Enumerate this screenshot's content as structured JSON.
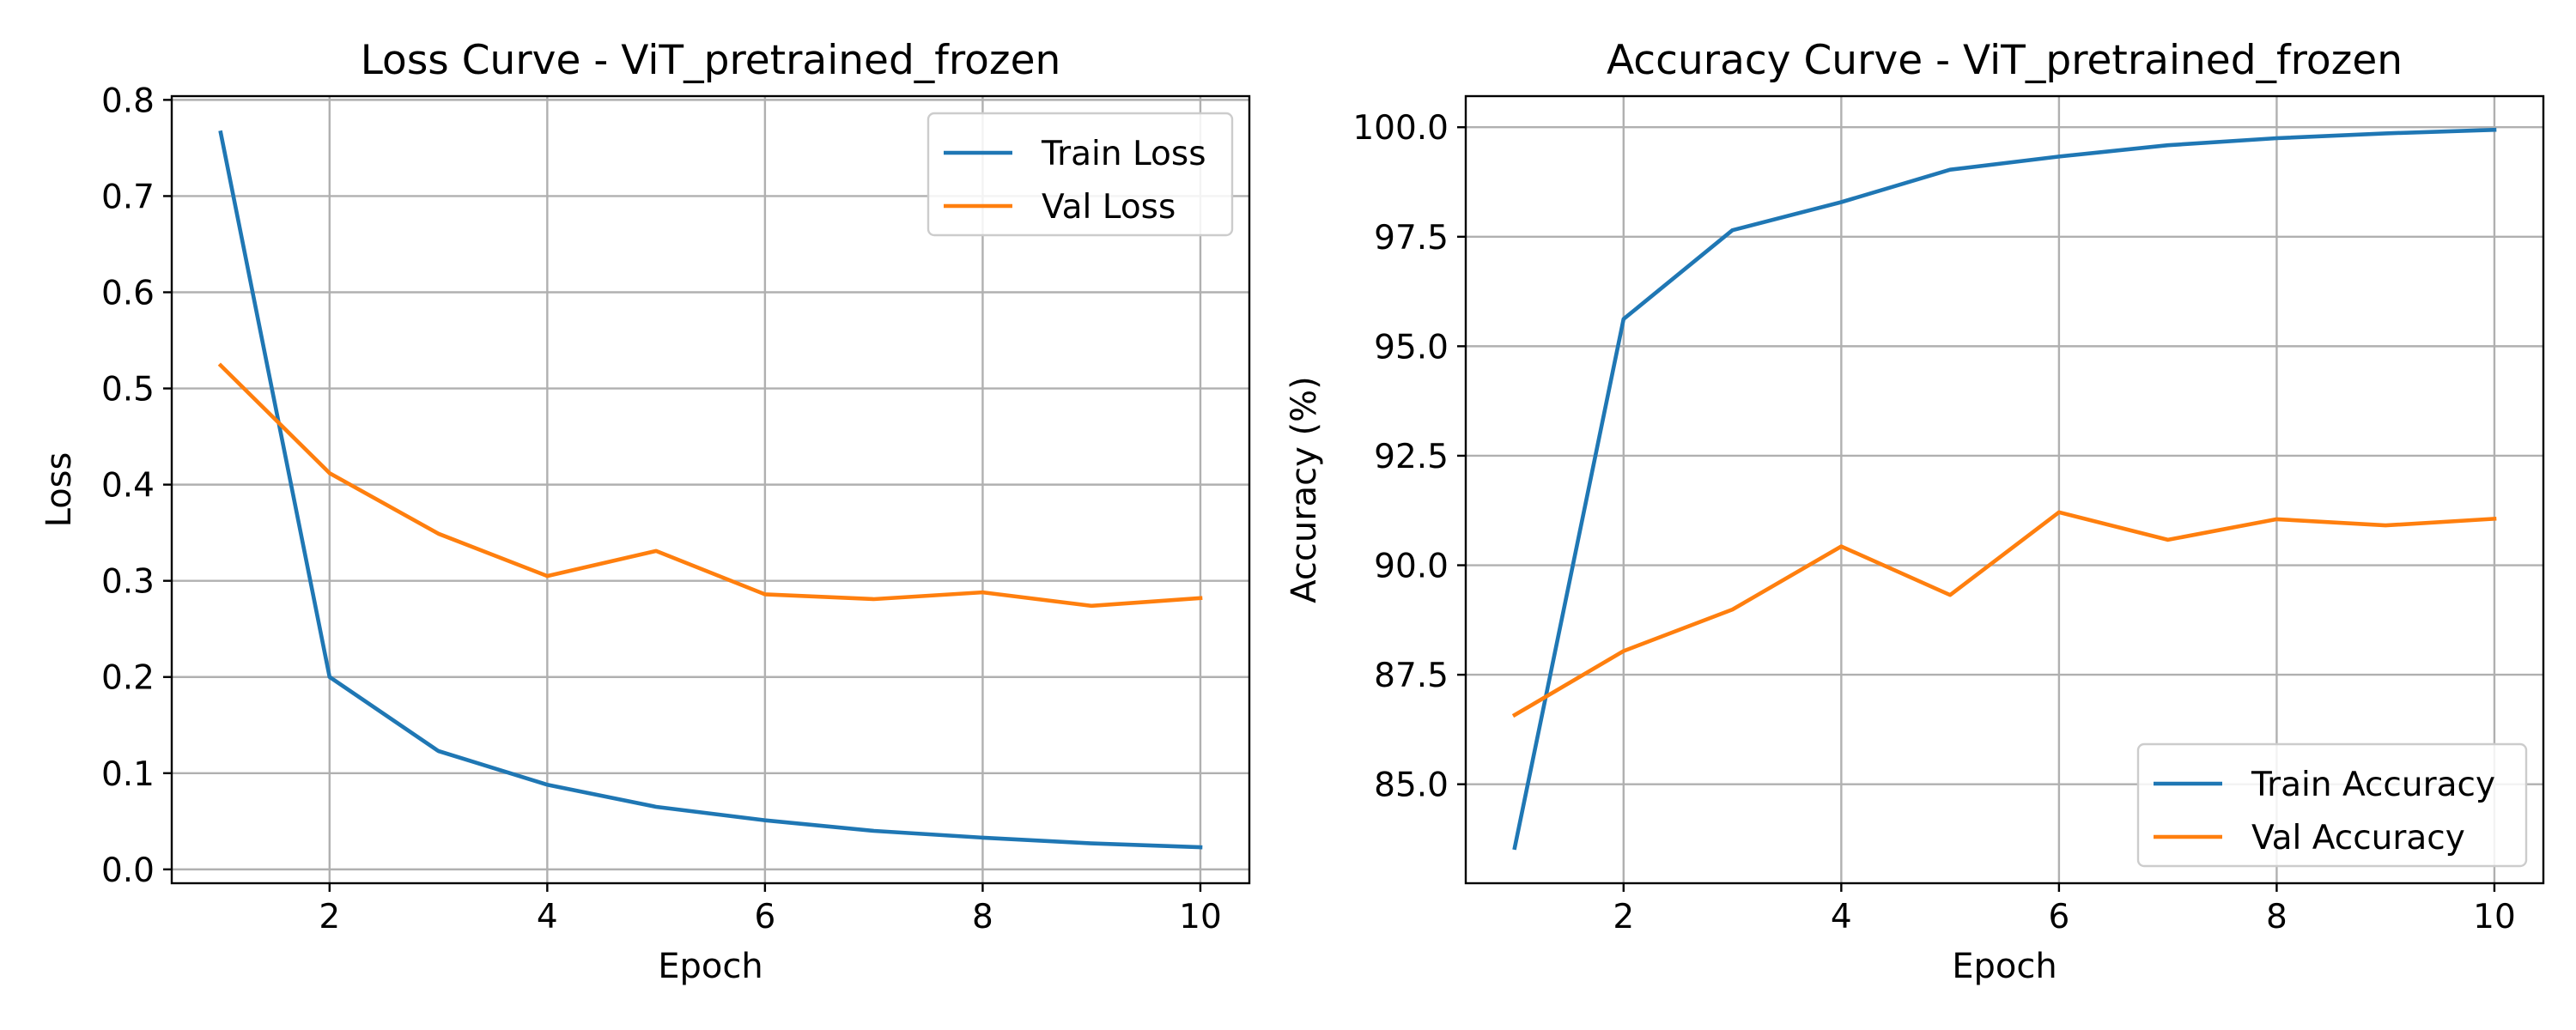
{
  "chart_data": [
    {
      "type": "line",
      "title": "Loss Curve - ViT_pretrained_frozen",
      "xlabel": "Epoch",
      "ylabel": "Loss",
      "xlim": [
        0.55,
        10.45
      ],
      "ylim": [
        -0.0144,
        0.8039
      ],
      "xticks": [
        2,
        4,
        6,
        8,
        10
      ],
      "yticks": [
        0.0,
        0.1,
        0.2,
        0.3,
        0.4,
        0.5,
        0.6,
        0.7,
        0.8
      ],
      "ytick_decimals": 1,
      "grid": true,
      "legend_position": "top-right",
      "x": [
        1,
        2,
        3,
        4,
        5,
        6,
        7,
        8,
        9,
        10
      ],
      "series": [
        {
          "name": "Train Loss",
          "color": "#1f77b4",
          "values": [
            0.766,
            0.2,
            0.123,
            0.088,
            0.065,
            0.051,
            0.04,
            0.033,
            0.027,
            0.023
          ]
        },
        {
          "name": "Val Loss",
          "color": "#ff7f0e",
          "values": [
            0.524,
            0.412,
            0.349,
            0.305,
            0.331,
            0.286,
            0.281,
            0.288,
            0.274,
            0.282
          ]
        }
      ]
    },
    {
      "type": "line",
      "title": "Accuracy Curve - ViT_pretrained_frozen",
      "xlabel": "Epoch",
      "ylabel": "Accuracy (%)",
      "xlim": [
        0.55,
        10.45
      ],
      "ylim": [
        82.74,
        100.71
      ],
      "xticks": [
        2,
        4,
        6,
        8,
        10
      ],
      "yticks": [
        85.0,
        87.5,
        90.0,
        92.5,
        95.0,
        97.5,
        100.0
      ],
      "ytick_decimals": 1,
      "grid": true,
      "legend_position": "bottom-right",
      "x": [
        1,
        2,
        3,
        4,
        5,
        6,
        7,
        8,
        9,
        10
      ],
      "series": [
        {
          "name": "Train Accuracy",
          "color": "#1f77b4",
          "values": [
            83.55,
            95.62,
            97.65,
            98.29,
            99.03,
            99.33,
            99.59,
            99.75,
            99.86,
            99.94
          ]
        },
        {
          "name": "Val Accuracy",
          "color": "#ff7f0e",
          "values": [
            86.58,
            88.04,
            88.99,
            90.43,
            89.32,
            91.21,
            90.58,
            91.05,
            90.91,
            91.06
          ]
        }
      ]
    }
  ]
}
